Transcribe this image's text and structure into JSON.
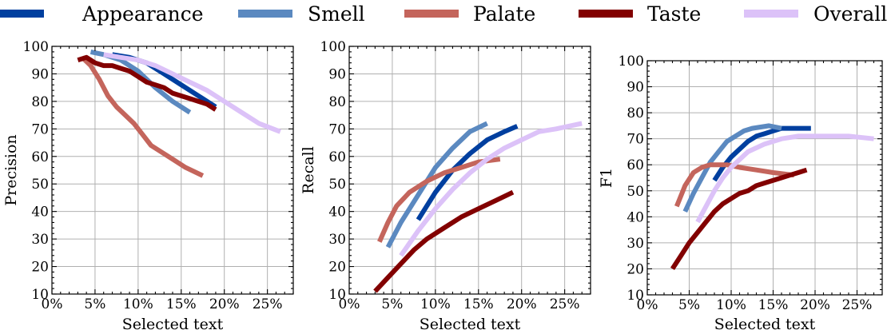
{
  "legend": {
    "placement": "top",
    "entries": [
      {
        "label": "Appearance",
        "color": "#003f9f"
      },
      {
        "label": "Smell",
        "color": "#5b89c0"
      },
      {
        "label": "Palate",
        "color": "#c4655c"
      },
      {
        "label": "Taste",
        "color": "#820000"
      },
      {
        "label": "Overall",
        "color": "#dcc2f8"
      }
    ]
  },
  "chart_data": [
    {
      "type": "line",
      "title": "",
      "xlabel": "Selected text",
      "ylabel": "Precision",
      "xlim": [
        0,
        28
      ],
      "ylim": [
        10,
        100
      ],
      "xticks": [
        0,
        5,
        10,
        15,
        20,
        25
      ],
      "xtick_labels": [
        "0%",
        "5%",
        "10%",
        "15%",
        "20%",
        "25%"
      ],
      "yticks": [
        10,
        20,
        30,
        40,
        50,
        60,
        70,
        80,
        90,
        100
      ],
      "ytick_labels": [
        "10",
        "20",
        "30",
        "40",
        "50",
        "60",
        "70",
        "80",
        "90",
        "100"
      ],
      "grid": true,
      "series": [
        {
          "name": "Appearance",
          "x": [
            7,
            9,
            11,
            13,
            15,
            17,
            19
          ],
          "y": [
            97,
            96,
            94,
            90,
            86,
            82,
            78
          ]
        },
        {
          "name": "Smell",
          "x": [
            4.5,
            6,
            8,
            10,
            12,
            14,
            16
          ],
          "y": [
            98,
            97,
            95,
            91,
            85,
            80,
            76
          ]
        },
        {
          "name": "Palate",
          "x": [
            3.5,
            4.5,
            5.5,
            6.5,
            7.5,
            8.5,
            9.5,
            10.5,
            11.5,
            12.5,
            14,
            15.5,
            17.5
          ],
          "y": [
            96,
            93,
            88,
            82,
            78,
            75,
            72,
            68,
            64,
            62,
            59,
            56,
            53
          ]
        },
        {
          "name": "Taste",
          "x": [
            3,
            4,
            5,
            6,
            7,
            8,
            9,
            10,
            11,
            12,
            13,
            14,
            15,
            16,
            17,
            18,
            19
          ],
          "y": [
            95,
            96,
            94,
            93,
            93,
            92,
            91,
            89,
            87,
            86,
            85,
            83,
            82,
            81,
            80,
            79,
            77
          ]
        },
        {
          "name": "Overall",
          "x": [
            6,
            8,
            10,
            12,
            14,
            16,
            18,
            20,
            22,
            24,
            26.5
          ],
          "y": [
            97,
            96,
            95,
            93,
            90,
            87,
            84,
            80,
            76,
            72,
            69
          ]
        }
      ]
    },
    {
      "type": "line",
      "title": "",
      "xlabel": "Selected text",
      "ylabel": "Recall",
      "xlim": [
        0,
        28
      ],
      "ylim": [
        10,
        100
      ],
      "xticks": [
        0,
        5,
        10,
        15,
        20,
        25
      ],
      "xtick_labels": [
        "0%",
        "5%",
        "10%",
        "15%",
        "20%",
        "25%"
      ],
      "yticks": [
        10,
        20,
        30,
        40,
        50,
        60,
        70,
        80,
        90,
        100
      ],
      "ytick_labels": [
        "10",
        "20",
        "30",
        "40",
        "50",
        "60",
        "70",
        "80",
        "90",
        "100"
      ],
      "grid": true,
      "series": [
        {
          "name": "Appearance",
          "x": [
            8,
            10,
            12,
            14,
            16,
            18,
            19.5
          ],
          "y": [
            37,
            47,
            55,
            61,
            66,
            69,
            71
          ]
        },
        {
          "name": "Smell",
          "x": [
            4.5,
            6,
            8,
            10,
            12,
            14,
            16
          ],
          "y": [
            27,
            36,
            46,
            56,
            63,
            69,
            72
          ]
        },
        {
          "name": "Palate",
          "x": [
            3.5,
            4.5,
            5.5,
            7,
            9,
            11,
            13,
            15,
            17.5
          ],
          "y": [
            29,
            36,
            42,
            47,
            51,
            54,
            56,
            58,
            59
          ]
        },
        {
          "name": "Taste",
          "x": [
            3,
            4.5,
            6,
            7.5,
            9,
            11,
            13,
            15,
            17,
            19
          ],
          "y": [
            11,
            16,
            21,
            26,
            30,
            34,
            38,
            41,
            44,
            47
          ]
        },
        {
          "name": "Overall",
          "x": [
            6,
            8,
            10,
            12,
            14,
            16,
            18,
            20,
            22,
            24,
            27
          ],
          "y": [
            24,
            33,
            41,
            48,
            54,
            59,
            63,
            66,
            69,
            70,
            72
          ]
        }
      ]
    },
    {
      "type": "line",
      "title": "",
      "xlabel": "Selected text",
      "ylabel": "F1",
      "xlim": [
        0,
        28
      ],
      "ylim": [
        10,
        100
      ],
      "xticks": [
        0,
        5,
        10,
        15,
        20,
        25
      ],
      "xtick_labels": [
        "0%",
        "5%",
        "10%",
        "15%",
        "20%",
        "25%"
      ],
      "yticks": [
        10,
        20,
        30,
        40,
        50,
        60,
        70,
        80,
        90,
        100
      ],
      "ytick_labels": [
        "10",
        "20",
        "30",
        "40",
        "50",
        "60",
        "70",
        "80",
        "90",
        "100"
      ],
      "grid": true,
      "series": [
        {
          "name": "Appearance",
          "x": [
            8,
            9,
            10,
            11,
            12,
            13,
            14,
            15,
            16,
            17,
            18,
            19.5
          ],
          "y": [
            54,
            59,
            63,
            66,
            69,
            71,
            72,
            73,
            74,
            74,
            74,
            74
          ]
        },
        {
          "name": "Smell",
          "x": [
            4.5,
            5.5,
            6.5,
            7.5,
            8.5,
            9.5,
            10.5,
            11.5,
            12.5,
            13.5,
            14.5,
            16
          ],
          "y": [
            42,
            49,
            55,
            61,
            65,
            69,
            71,
            73,
            74,
            74.5,
            75,
            74
          ]
        },
        {
          "name": "Palate",
          "x": [
            3.5,
            4.5,
            5.5,
            6.5,
            7.5,
            8.5,
            9.5,
            11,
            13,
            15,
            17.5
          ],
          "y": [
            44,
            52,
            57,
            59,
            60,
            60,
            60,
            59,
            58,
            57,
            56
          ]
        },
        {
          "name": "Taste",
          "x": [
            3,
            4,
            5,
            6,
            7,
            8,
            9,
            10,
            11,
            12,
            13,
            14,
            15,
            16,
            17,
            18,
            19
          ],
          "y": [
            20,
            25,
            30,
            34,
            38,
            42,
            45,
            47,
            49,
            50,
            52,
            53,
            54,
            55,
            56,
            57,
            58
          ]
        },
        {
          "name": "Overall",
          "x": [
            6,
            7,
            8,
            9,
            10,
            11,
            12,
            14,
            16,
            18,
            20,
            22,
            24,
            27
          ],
          "y": [
            38,
            44,
            50,
            55,
            59,
            62,
            65,
            68,
            70,
            71,
            71,
            71,
            71,
            70
          ]
        }
      ]
    }
  ]
}
